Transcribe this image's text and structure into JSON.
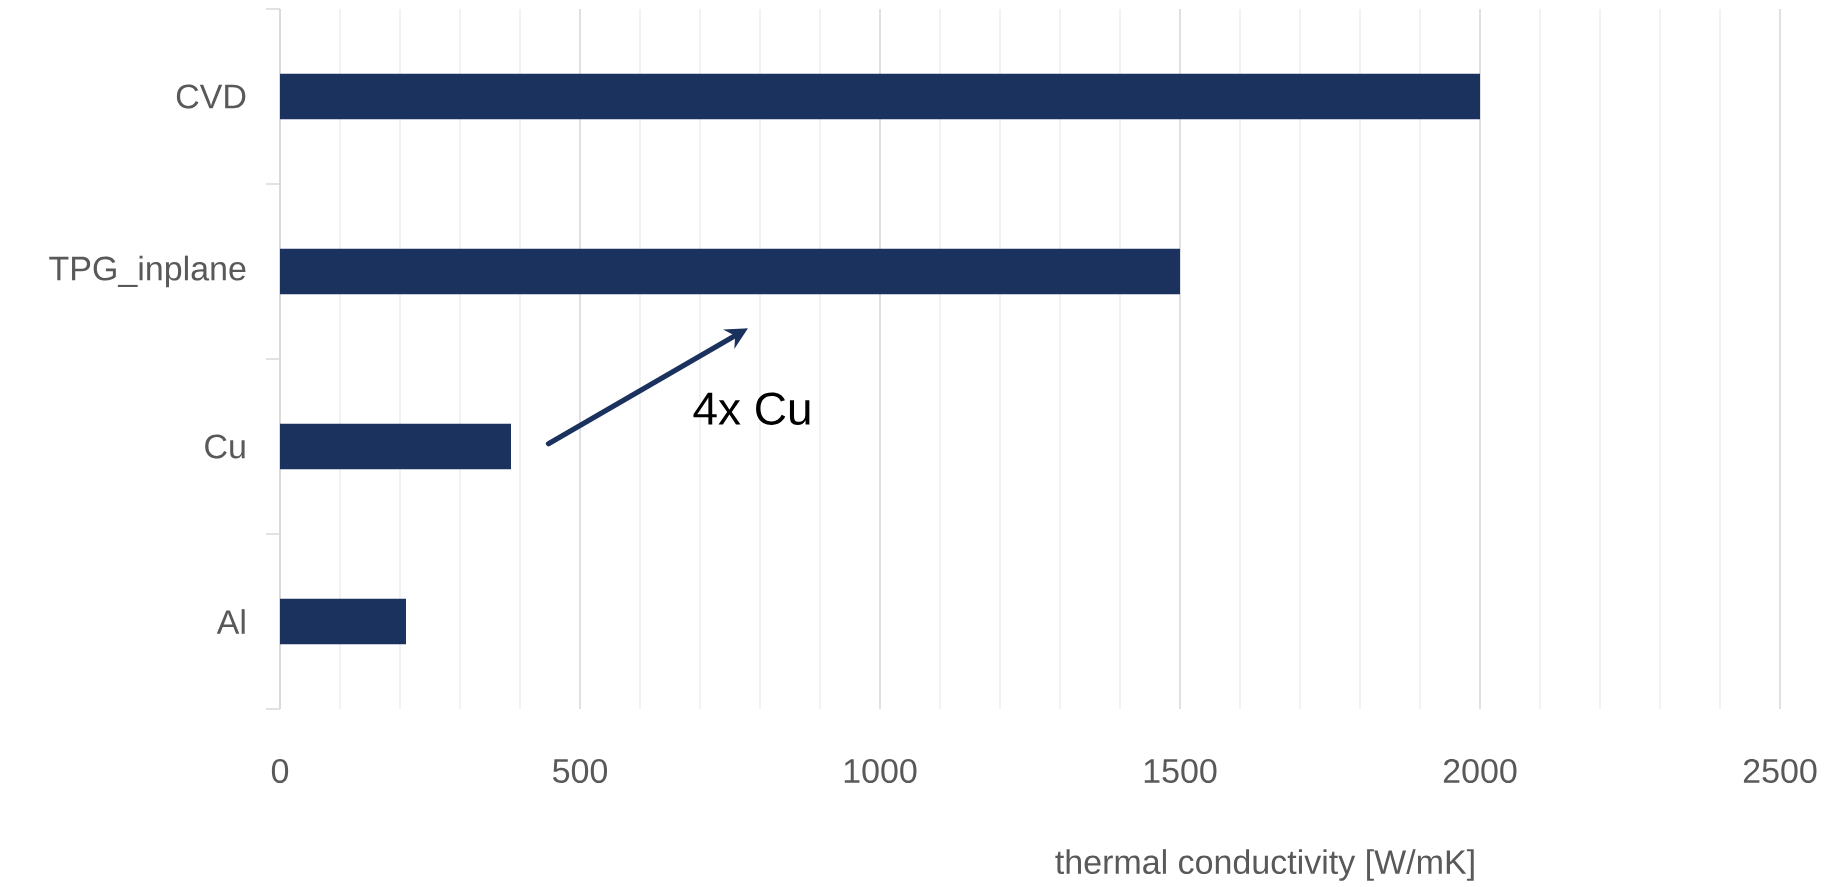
{
  "chart_data": {
    "type": "bar",
    "orientation": "horizontal",
    "categories": [
      "CVD",
      "TPG_inplane",
      "Cu",
      "Al"
    ],
    "values": [
      2000,
      1500,
      385,
      210
    ],
    "color": "#1b325f",
    "xlabel": "thermal conductivity [W/mK]",
    "xlim": [
      0,
      2500
    ],
    "xticks": [
      0,
      {
        "value": 100,
        "label": null
      },
      {
        "value": 200,
        "label": null
      },
      {
        "value": 300,
        "label": null
      },
      {
        "value": 400,
        "label": null
      },
      500,
      {
        "value": 600,
        "label": null
      },
      {
        "value": 700,
        "label": null
      },
      {
        "value": 800,
        "label": null
      },
      {
        "value": 900,
        "label": null
      },
      1000,
      {
        "value": 1100,
        "label": null
      },
      {
        "value": 1200,
        "label": null
      },
      {
        "value": 1300,
        "label": null
      },
      {
        "value": 1400,
        "label": null
      },
      1500,
      {
        "value": 1600,
        "label": null
      },
      {
        "value": 1700,
        "label": null
      },
      {
        "value": 1800,
        "label": null
      },
      {
        "value": 1900,
        "label": null
      },
      2000,
      {
        "value": 2100,
        "label": null
      },
      {
        "value": 2200,
        "label": null
      },
      {
        "value": 2300,
        "label": null
      },
      {
        "value": 2400,
        "label": null
      },
      2500
    ],
    "grid": "x",
    "annotations": [
      "4x Cu"
    ]
  }
}
